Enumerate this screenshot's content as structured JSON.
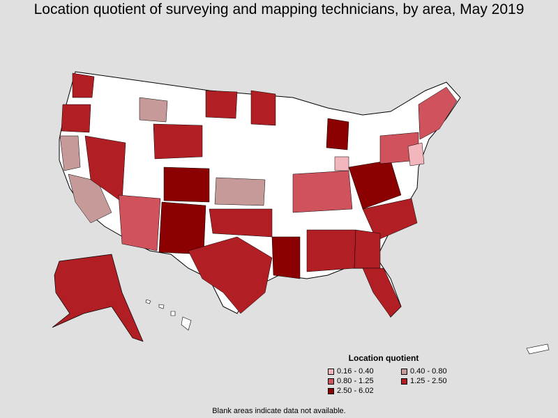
{
  "title": "Location quotient of surveying and mapping technicians, by area, May 2019",
  "legend": {
    "title": "Location quotient",
    "items": [
      {
        "label": "0.16 - 0.40",
        "color": "#f4b6bd"
      },
      {
        "label": "0.40 - 0.80",
        "color": "#c79a9a"
      },
      {
        "label": "0.80 - 1.25",
        "color": "#d0525c"
      },
      {
        "label": "1.25 - 2.50",
        "color": "#b11e24"
      },
      {
        "label": "2.50 - 6.02",
        "color": "#8b0000"
      }
    ]
  },
  "footnote": "Blank areas indicate data not available.",
  "colors": {
    "no_data": "#ffffff",
    "background": "#e0e0e0",
    "border": "#000000"
  }
}
